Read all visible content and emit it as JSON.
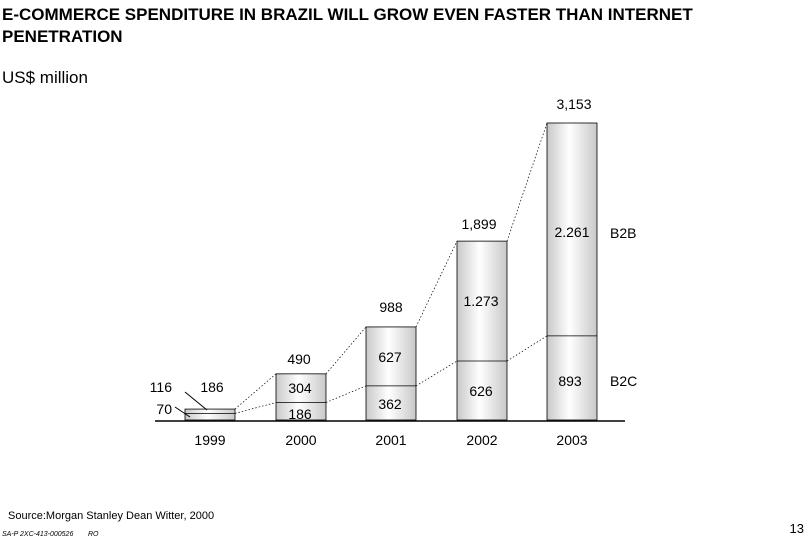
{
  "title": "E-COMMERCE SPENDITURE IN BRAZIL WILL GROW EVEN FASTER THAN INTERNET PENETRATION",
  "subtitle": "US$ million",
  "footer": {
    "source": "Source:Morgan  Stanley Dean Witter, 2000",
    "ref_code": "SA-P 2XC-413-000526",
    "ref_initials": "RO",
    "page_number": "13"
  },
  "chart_data": {
    "type": "bar",
    "stacked": true,
    "categories": [
      "1999",
      "2000",
      "2001",
      "2002",
      "2003"
    ],
    "series": [
      {
        "name": "B2C",
        "values": [
          70,
          186,
          362,
          626,
          893
        ],
        "labels": [
          "70",
          "186",
          "362",
          "626",
          "893"
        ]
      },
      {
        "name": "B2B",
        "values": [
          46,
          304,
          627,
          1273,
          2261
        ],
        "labels": [
          "",
          "304",
          "627",
          "1.273",
          "2.261"
        ]
      }
    ],
    "totals": [
      116,
      490,
      988,
      1899,
      3153
    ],
    "total_labels": [
      "116",
      "490",
      "988",
      "1,899",
      "3,153"
    ],
    "extra_label_1999": "186",
    "ylim": [
      0,
      3153
    ],
    "grid": false
  }
}
